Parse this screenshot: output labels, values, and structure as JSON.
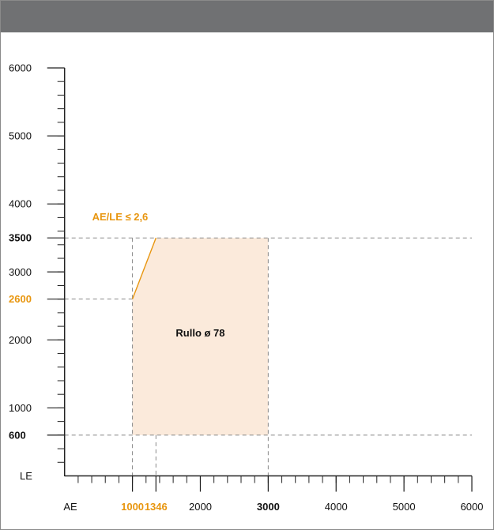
{
  "chart_data": {
    "type": "area",
    "y_axis": {
      "label": "LE",
      "range": [
        0,
        6000
      ],
      "minor_step": 200,
      "ticks": [
        {
          "value": 6000,
          "label": "6000",
          "style": "normal"
        },
        {
          "value": 5000,
          "label": "5000",
          "style": "normal"
        },
        {
          "value": 4000,
          "label": "4000",
          "style": "normal"
        },
        {
          "value": 3500,
          "label": "3500",
          "style": "bold"
        },
        {
          "value": 3000,
          "label": "3000",
          "style": "normal"
        },
        {
          "value": 2600,
          "label": "2600",
          "style": "accent"
        },
        {
          "value": 2000,
          "label": "2000",
          "style": "normal"
        },
        {
          "value": 1000,
          "label": "1000",
          "style": "normal"
        },
        {
          "value": 600,
          "label": "600",
          "style": "bold"
        }
      ]
    },
    "x_axis": {
      "label": "AE",
      "range": [
        0,
        6000
      ],
      "minor_step": 200,
      "ticks": [
        {
          "value": 1000,
          "label": "1000",
          "style": "accent"
        },
        {
          "value": 1346,
          "label": "1346",
          "style": "accent"
        },
        {
          "value": 2000,
          "label": "2000",
          "style": "normal"
        },
        {
          "value": 3000,
          "label": "3000",
          "style": "bold"
        },
        {
          "value": 4000,
          "label": "4000",
          "style": "normal"
        },
        {
          "value": 5000,
          "label": "5000",
          "style": "normal"
        },
        {
          "value": 6000,
          "label": "6000",
          "style": "normal"
        }
      ]
    },
    "region": {
      "label": "Rullo ø 78",
      "polygon": [
        [
          1000,
          600
        ],
        [
          3000,
          600
        ],
        [
          3000,
          3500
        ],
        [
          1346,
          3500
        ],
        [
          1000,
          2600
        ]
      ],
      "label_at": [
        1000,
        600,
        3000,
        3500
      ]
    },
    "constraint_line": {
      "label": "AE/LE ≤ 2,6",
      "from": [
        1000,
        2600
      ],
      "to": [
        1346,
        3500
      ]
    },
    "reference_lines": {
      "horizontal": [
        3500,
        2600,
        600
      ],
      "vertical": [
        1000,
        1346,
        3000
      ]
    }
  },
  "colors": {
    "header": "#707173",
    "region_fill": "#fbeadb",
    "accent": "#e8960f",
    "axis": "#222222",
    "dashed": "#8a8a8a"
  }
}
